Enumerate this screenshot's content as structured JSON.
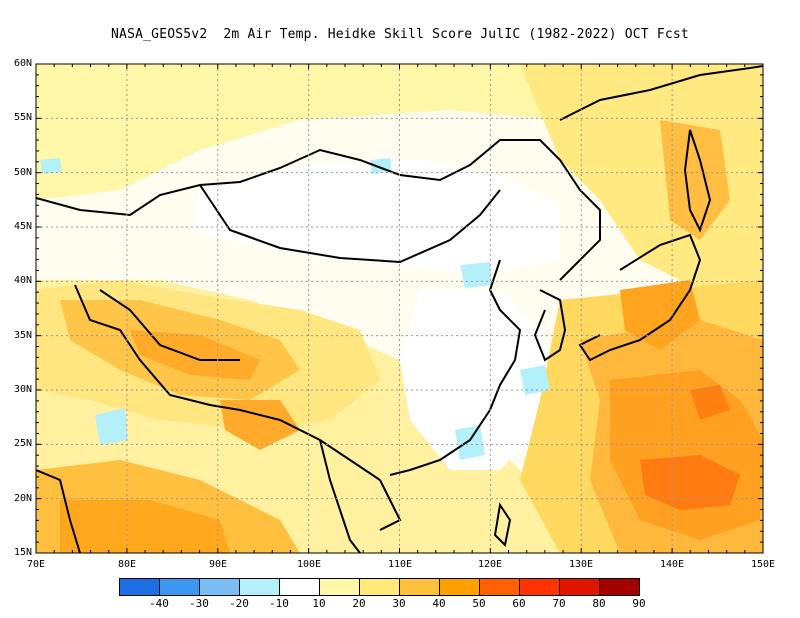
{
  "title": "NASA_GEOS5v2  2m Air Temp. Heidke Skill Score JulIC (1982-2022) OCT Fcst",
  "map": {
    "lon_range": [
      70,
      150
    ],
    "lat_range": [
      15,
      60
    ],
    "x_labels": [
      "70E",
      "80E",
      "90E",
      "100E",
      "110E",
      "120E",
      "130E",
      "140E",
      "150E"
    ],
    "y_labels": [
      "60N",
      "55N",
      "50N",
      "45N",
      "40N",
      "35N",
      "30N",
      "25N",
      "20N",
      "15N"
    ],
    "grid": true
  },
  "colorbar": {
    "colors": [
      "#1e6ee6",
      "#3c96f0",
      "#78bef5",
      "#b4f0fa",
      "#ffffff",
      "#fffaaa",
      "#ffe978",
      "#ffc03c",
      "#ffa000",
      "#ff6000",
      "#ff3200",
      "#e11400",
      "#a50000"
    ],
    "labels": [
      "-40",
      "-30",
      "-20",
      "-10",
      "10",
      "20",
      "30",
      "40",
      "50",
      "60",
      "70",
      "80",
      "90"
    ]
  }
}
